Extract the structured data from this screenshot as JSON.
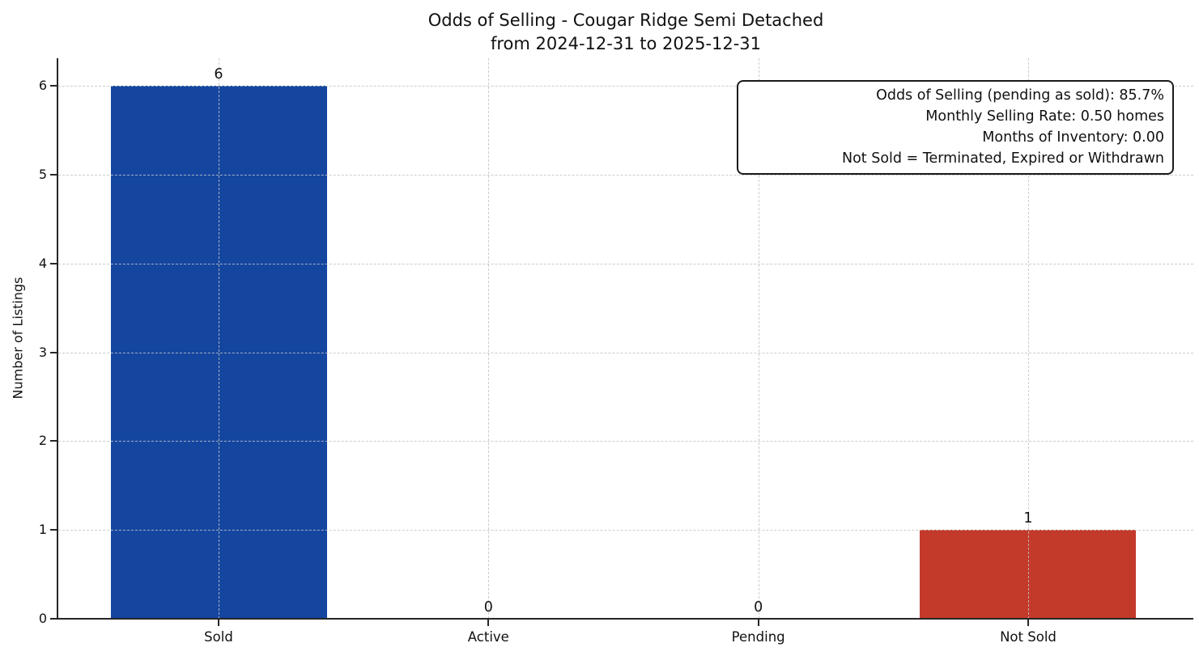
{
  "figure": {
    "title": "Odds of Selling - Cougar Ridge Semi Detached",
    "subtitle": "from 2024-12-31 to 2025-12-31"
  },
  "chart_data": {
    "type": "bar",
    "title": "Odds of Selling - Cougar Ridge Semi Detached",
    "subtitle": "from 2024-12-31 to 2025-12-31",
    "categories": [
      "Sold",
      "Active",
      "Pending",
      "Not Sold"
    ],
    "values": [
      6,
      0,
      0,
      1
    ],
    "value_labels": [
      "6",
      "0",
      "0",
      "1"
    ],
    "bar_colors": [
      "#1446a0",
      "#1446a0",
      "#1446a0",
      "#c33a2b"
    ],
    "xlabel": "",
    "ylabel": "Number of Listings",
    "yticks": [
      0,
      1,
      2,
      3,
      4,
      5,
      6
    ],
    "ylim": [
      0,
      6.3
    ],
    "grid": "both-dashed",
    "legend": "none",
    "annotation_position": "top-right"
  },
  "annotation": {
    "lines": [
      "Odds of Selling (pending as sold): 85.7%",
      "Monthly Selling Rate: 0.50 homes",
      "Months of Inventory: 0.00",
      "Not Sold = Terminated, Expired or Withdrawn"
    ]
  },
  "colors": {
    "sold_bar": "#1446a0",
    "not_sold_bar": "#c33a2b",
    "grid": "#c3c3c3",
    "axis": "#262626",
    "text": "#111111",
    "background": "#ffffff"
  }
}
